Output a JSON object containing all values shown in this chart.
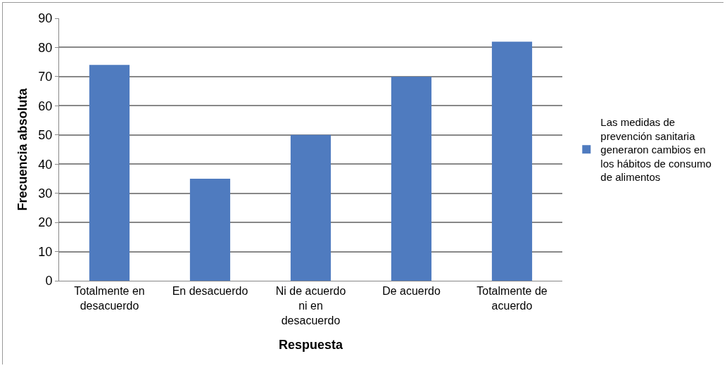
{
  "chart_data": {
    "type": "bar",
    "xlabel": "Respuesta",
    "ylabel": "Frecuencia absoluta",
    "categories": [
      "Totalmente en desacuerdo",
      "En desacuerdo",
      "Ni de acuerdo ni en desacuerdo",
      "De acuerdo",
      "Totalmente de acuerdo"
    ],
    "series": [
      {
        "name": "Las medidas de prevención sanitaria generaron cambios en los hábitos de consumo de alimentos",
        "color": "#4f7bbf",
        "values": [
          74,
          35,
          50,
          70,
          82
        ]
      }
    ],
    "ylim": [
      0,
      90
    ],
    "yticks": [
      0,
      10,
      20,
      30,
      40,
      50,
      60,
      70,
      80,
      90
    ],
    "grid": "y",
    "legend": "right"
  }
}
